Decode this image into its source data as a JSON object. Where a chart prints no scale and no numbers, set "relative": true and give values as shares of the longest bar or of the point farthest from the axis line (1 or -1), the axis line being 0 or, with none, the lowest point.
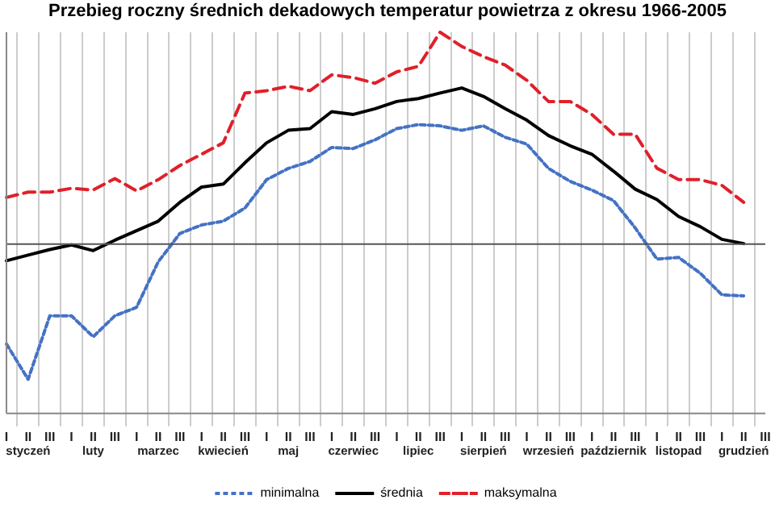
{
  "chart_data": {
    "type": "line",
    "title": "Przebieg roczny średnich dekadowych temperatur powietrza z okresu 1966-2005",
    "relative": true,
    "grid": "x",
    "legend": "bottom",
    "marker": "none",
    "categories": [
      "I",
      "II",
      "III",
      "I",
      "II",
      "III",
      "I",
      "II",
      "III",
      "I",
      "II",
      "III",
      "I",
      "II",
      "III",
      "I",
      "II",
      "III",
      "I",
      "II",
      "III",
      "I",
      "II",
      "III",
      "I",
      "II",
      "III",
      "I",
      "II",
      "III",
      "I",
      "II",
      "III",
      "I",
      "II",
      "III"
    ],
    "annotations": [
      "styczeń",
      "luty",
      "marzec",
      "kwiecień",
      "maj",
      "czerwiec",
      "lipiec",
      "sierpień",
      "wrzesień",
      "październik",
      "listopad",
      "grudzień"
    ],
    "series": [
      {
        "name": "minimalna",
        "color": "#4472c4",
        "line_style": "dotted",
        "values": [
          -0.472,
          -0.639,
          -0.339,
          -0.339,
          -0.438,
          -0.339,
          -0.299,
          -0.084,
          0.05,
          0.09,
          0.108,
          0.17,
          0.304,
          0.357,
          0.39,
          0.456,
          0.451,
          0.492,
          0.545,
          0.564,
          0.558,
          0.537,
          0.558,
          0.504,
          0.472,
          0.357,
          0.296,
          0.255,
          0.205,
          0.076,
          -0.071,
          -0.063,
          -0.138,
          -0.24,
          -0.245,
          null
        ]
      },
      {
        "name": "średnia",
        "color": "#000000",
        "line_style": "solid",
        "values": [
          -0.079,
          -0.052,
          -0.026,
          -0.004,
          -0.031,
          0.018,
          0.063,
          0.108,
          0.197,
          0.269,
          0.283,
          0.384,
          0.478,
          0.537,
          0.545,
          0.625,
          0.612,
          0.639,
          0.673,
          0.687,
          0.713,
          0.737,
          0.697,
          0.639,
          0.585,
          0.512,
          0.464,
          0.424,
          0.344,
          0.259,
          0.21,
          0.13,
          0.082,
          0.022,
          0.002,
          null
        ]
      },
      {
        "name": "maksymalna",
        "color": "#e0202a",
        "line_style": "dashed",
        "values": [
          0.22,
          0.245,
          0.245,
          0.263,
          0.255,
          0.309,
          0.251,
          0.304,
          0.371,
          0.424,
          0.478,
          0.713,
          0.724,
          0.745,
          0.724,
          0.799,
          0.786,
          0.759,
          0.813,
          0.839,
          1,
          0.933,
          0.885,
          0.845,
          0.773,
          0.673,
          0.673,
          0.612,
          0.518,
          0.518,
          0.358,
          0.304,
          0.304,
          0.277,
          0.197,
          null
        ]
      }
    ]
  }
}
